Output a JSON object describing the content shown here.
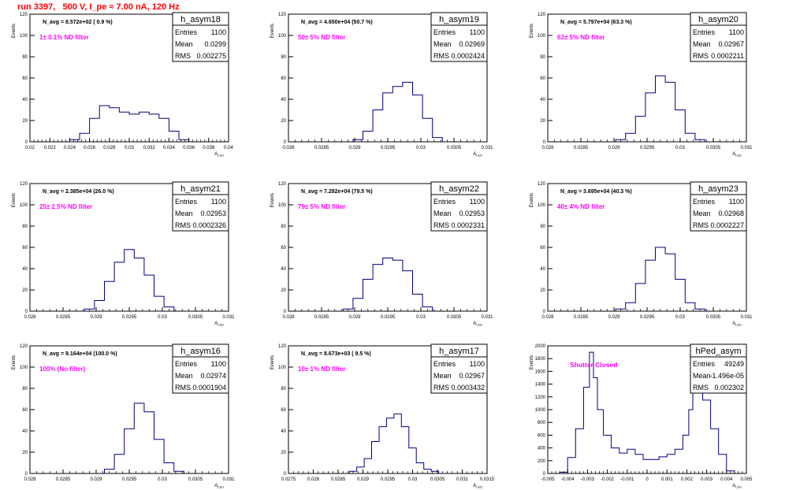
{
  "page_title": "run 3397,   500 V, I_pe ≈ 7.00 nA, 120 Hz",
  "colors": {
    "histogram_line": "#00007f",
    "annotation_text": "#ff00ff",
    "axes": "#000000",
    "run_title": "#ff0000"
  },
  "chart_data": [
    {
      "type": "histogram",
      "name": "h_asym18",
      "ylabel": "Events",
      "xlabel": "A_{LED}",
      "xlim": [
        0.02,
        0.04
      ],
      "ylim": [
        0,
        120
      ],
      "xticks": [
        0.02,
        0.022,
        0.024,
        0.026,
        0.028,
        0.03,
        0.032,
        0.034,
        0.036,
        0.038,
        0.04
      ],
      "xtick_labels": [
        "0.02",
        "0.022",
        "0.024",
        "0.026",
        "0.028",
        "0.03",
        "0.032",
        "0.034",
        "0.036",
        "0.038",
        "0.04"
      ],
      "yticks": [
        0,
        20,
        40,
        60,
        80,
        100,
        120
      ],
      "stats": {
        "Entries": "1100",
        "Mean": "0.0299",
        "RMS": "0.002275"
      },
      "n_avg": "N_avg = 8.572e+02 ( 0.9 %)",
      "filter_label": "1± 0.1% ND filter",
      "bins": {
        "x": [
          0.0245,
          0.0255,
          0.0265,
          0.0275,
          0.0285,
          0.0295,
          0.0305,
          0.0315,
          0.0325,
          0.0335,
          0.0345,
          0.0355
        ],
        "y": [
          2,
          8,
          22,
          34,
          32,
          28,
          26,
          28,
          26,
          22,
          10,
          2
        ]
      }
    },
    {
      "type": "histogram",
      "name": "h_asym19",
      "ylabel": "Events",
      "xlabel": "A_{LED}",
      "xlim": [
        0.028,
        0.031
      ],
      "ylim": [
        0,
        120
      ],
      "xticks": [
        0.028,
        0.0285,
        0.029,
        0.0295,
        0.03,
        0.0305,
        0.031
      ],
      "xtick_labels": [
        "0.028",
        "0.0285",
        "0.029",
        "0.0295",
        "0.03",
        "0.0305",
        "0.031"
      ],
      "yticks": [
        0,
        20,
        40,
        60,
        80,
        100,
        120
      ],
      "stats": {
        "Entries": "1100",
        "Mean": "0.02969",
        "RMS": "0.0002424"
      },
      "n_avg": "N_avg = 4.650e+04 (50.7 %)",
      "filter_label": "50± 5% ND filter",
      "bins": {
        "x": [
          0.02905,
          0.0292,
          0.02935,
          0.0295,
          0.02965,
          0.0298,
          0.02995,
          0.0301,
          0.03025
        ],
        "y": [
          2,
          10,
          30,
          46,
          52,
          56,
          44,
          22,
          4
        ]
      }
    },
    {
      "type": "histogram",
      "name": "h_asym20",
      "ylabel": "Events",
      "xlabel": "A_{LED}",
      "xlim": [
        0.028,
        0.031
      ],
      "ylim": [
        0,
        120
      ],
      "xticks": [
        0.028,
        0.0285,
        0.029,
        0.0295,
        0.03,
        0.0305,
        0.031
      ],
      "xtick_labels": [
        "0.028",
        "0.0285",
        "0.029",
        "0.0295",
        "0.03",
        "0.0305",
        "0.031"
      ],
      "yticks": [
        0,
        20,
        40,
        60,
        80,
        100,
        120
      ],
      "stats": {
        "Entries": "1100",
        "Mean": "0.02967",
        "RMS": "0.0002211"
      },
      "n_avg": "N_avg = 5.797e+04 (63.3 %)",
      "filter_label": "63± 5% ND filter",
      "bins": {
        "x": [
          0.0291,
          0.02925,
          0.0294,
          0.02955,
          0.0297,
          0.02985,
          0.03,
          0.03015,
          0.0303
        ],
        "y": [
          2,
          8,
          24,
          46,
          62,
          56,
          30,
          8,
          2
        ]
      }
    },
    {
      "type": "histogram",
      "name": "h_asym21",
      "ylabel": "Events",
      "xlabel": "A_{LED}",
      "xlim": [
        0.028,
        0.031
      ],
      "ylim": [
        0,
        120
      ],
      "xticks": [
        0.028,
        0.0285,
        0.029,
        0.0295,
        0.03,
        0.0305,
        0.031
      ],
      "xtick_labels": [
        "0.028",
        "0.0285",
        "0.029",
        "0.0295",
        "0.03",
        "0.0305",
        "0.031"
      ],
      "yticks": [
        0,
        20,
        40,
        60,
        80,
        100,
        120
      ],
      "stats": {
        "Entries": "1100",
        "Mean": "0.02953",
        "RMS": "0.0002326"
      },
      "n_avg": "N_avg = 2.385e+04 (26.0 %)",
      "filter_label": "25± 2.5% ND filter",
      "bins": {
        "x": [
          0.0289,
          0.02905,
          0.0292,
          0.02935,
          0.0295,
          0.02965,
          0.0298,
          0.02995,
          0.0301
        ],
        "y": [
          2,
          10,
          28,
          46,
          58,
          50,
          34,
          14,
          4
        ]
      }
    },
    {
      "type": "histogram",
      "name": "h_asym22",
      "ylabel": "Events",
      "xlabel": "A_{LED}",
      "xlim": [
        0.028,
        0.031
      ],
      "ylim": [
        0,
        120
      ],
      "xticks": [
        0.028,
        0.0285,
        0.029,
        0.0295,
        0.03,
        0.0305,
        0.031
      ],
      "xtick_labels": [
        "0.028",
        "0.0285",
        "0.029",
        "0.0295",
        "0.03",
        "0.0305",
        "0.031"
      ],
      "yticks": [
        0,
        20,
        40,
        60,
        80,
        100,
        120
      ],
      "stats": {
        "Entries": "1100",
        "Mean": "0.02953",
        "RMS": "0.0002331"
      },
      "n_avg": "N_avg = 7.282e+04 (79.5 %)",
      "filter_label": "79± 5% ND filter",
      "bins": {
        "x": [
          0.0289,
          0.02905,
          0.0292,
          0.02935,
          0.0295,
          0.02965,
          0.0298,
          0.02995,
          0.0301
        ],
        "y": [
          2,
          12,
          30,
          44,
          50,
          48,
          38,
          16,
          4
        ]
      }
    },
    {
      "type": "histogram",
      "name": "h_asym23",
      "ylabel": "Events",
      "xlabel": "A_{LED}",
      "xlim": [
        0.028,
        0.031
      ],
      "ylim": [
        0,
        120
      ],
      "xticks": [
        0.028,
        0.0285,
        0.029,
        0.0295,
        0.03,
        0.0305,
        0.031
      ],
      "xtick_labels": [
        "0.028",
        "0.0285",
        "0.029",
        "0.0295",
        "0.03",
        "0.0305",
        "0.031"
      ],
      "yticks": [
        0,
        20,
        40,
        60,
        80,
        100,
        120
      ],
      "stats": {
        "Entries": "1100",
        "Mean": "0.02968",
        "RMS": "0.0002227"
      },
      "n_avg": "N_avg = 3.695e+04 (40.3 %)",
      "filter_label": "40± 4% ND filter",
      "bins": {
        "x": [
          0.0291,
          0.02925,
          0.0294,
          0.02955,
          0.0297,
          0.02985,
          0.03,
          0.03015,
          0.0303
        ],
        "y": [
          2,
          8,
          26,
          48,
          60,
          54,
          30,
          8,
          2
        ]
      }
    },
    {
      "type": "histogram",
      "name": "h_asym16",
      "ylabel": "Events",
      "xlabel": "A_{LED}",
      "xlim": [
        0.028,
        0.031
      ],
      "ylim": [
        0,
        120
      ],
      "xticks": [
        0.028,
        0.0285,
        0.029,
        0.0295,
        0.03,
        0.0305,
        0.031
      ],
      "xtick_labels": [
        "0.028",
        "0.0285",
        "0.029",
        "0.0295",
        "0.03",
        "0.0305",
        "0.031"
      ],
      "yticks": [
        0,
        20,
        40,
        60,
        80,
        100,
        120
      ],
      "stats": {
        "Entries": "1100",
        "Mean": "0.02974",
        "RMS": "0.0001904"
      },
      "n_avg": "N_avg = 9.164e+04 (100.0 %)",
      "filter_label": "100% (No filter)",
      "bins": {
        "x": [
          0.0292,
          0.02935,
          0.0295,
          0.02965,
          0.0298,
          0.02995,
          0.0301,
          0.03025
        ],
        "y": [
          4,
          18,
          42,
          66,
          58,
          32,
          10,
          2
        ]
      }
    },
    {
      "type": "histogram",
      "name": "h_asym17",
      "ylabel": "Events",
      "xlabel": "A_{LED}",
      "xlim": [
        0.0275,
        0.0315
      ],
      "ylim": [
        0,
        120
      ],
      "xticks": [
        0.0275,
        0.028,
        0.0285,
        0.029,
        0.0295,
        0.03,
        0.0305,
        0.031,
        0.0315
      ],
      "xtick_labels": [
        "0.0275",
        "0.028",
        "0.0285",
        "0.029",
        "0.0295",
        "0.03",
        "0.0305",
        "0.031",
        "0.0315"
      ],
      "yticks": [
        0,
        20,
        40,
        60,
        80,
        100,
        120
      ],
      "stats": {
        "Entries": "1100",
        "Mean": "0.02967",
        "RMS": "0.0003432"
      },
      "n_avg": "N_avg = 8.673e+03 ( 9.5 %)",
      "filter_label": "10± 1% ND filter",
      "bins": {
        "x": [
          0.0288,
          0.02895,
          0.0291,
          0.02925,
          0.0294,
          0.02955,
          0.0297,
          0.02985,
          0.03,
          0.03015,
          0.0303,
          0.03045
        ],
        "y": [
          2,
          6,
          14,
          30,
          44,
          52,
          56,
          44,
          24,
          10,
          4,
          2
        ]
      }
    },
    {
      "type": "histogram",
      "name": "hPed_asym",
      "ylabel": "Events",
      "xlabel": "A_{LED}",
      "xlim": [
        -0.005,
        0.005
      ],
      "ylim": [
        0,
        2000
      ],
      "xticks": [
        -0.005,
        -0.004,
        -0.003,
        -0.002,
        -0.001,
        0,
        0.001,
        0.002,
        0.003,
        0.004,
        0.005
      ],
      "xtick_labels": [
        "-0.005",
        "-0.004",
        "-0.003",
        "-0.002",
        "-0.001",
        "0",
        "0.001",
        "0.002",
        "0.003",
        "0.004",
        "0.005"
      ],
      "yticks": [
        0,
        200,
        400,
        600,
        800,
        1000,
        1200,
        1400,
        1600,
        1800,
        2000
      ],
      "stats": {
        "Entries": "49249",
        "Mean": "-1.496e-05",
        "RMS": "0.002302"
      },
      "annotation": "Shutter Closed",
      "bins": {
        "x": [
          -0.0042,
          -0.0038,
          -0.0034,
          -0.003,
          -0.0028,
          -0.0026,
          -0.0024,
          -0.002,
          -0.0016,
          -0.0012,
          -0.0008,
          -0.0004,
          0,
          0.0004,
          0.0008,
          0.0012,
          0.0016,
          0.002,
          0.0022,
          0.0024,
          0.0026,
          0.003,
          0.0034,
          0.0038,
          0.0042
        ],
        "y": [
          20,
          250,
          700,
          1350,
          1900,
          1500,
          1000,
          600,
          400,
          320,
          380,
          300,
          220,
          220,
          260,
          300,
          380,
          600,
          1000,
          1700,
          1500,
          1150,
          700,
          300,
          40
        ]
      }
    }
  ]
}
